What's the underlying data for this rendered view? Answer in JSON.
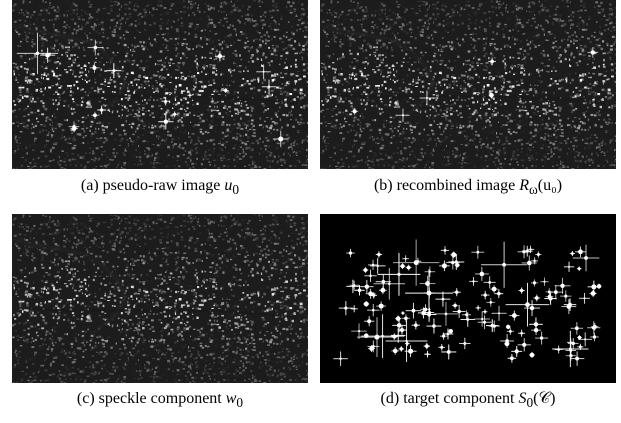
{
  "panels": [
    {
      "id": "a",
      "kind": "speckle-with-targets",
      "caption_prefix": "(a) pseudo-raw image ",
      "caption_math": "u",
      "caption_sub": "0",
      "caption_suffix": ""
    },
    {
      "id": "b",
      "kind": "speckle-with-targets-soft",
      "caption_prefix": "(b) recombined image ",
      "caption_math": "R",
      "caption_sub": "ω",
      "caption_suffix": "(u₀)"
    },
    {
      "id": "c",
      "kind": "speckle-only",
      "caption_prefix": "(c) speckle component ",
      "caption_math": "w",
      "caption_sub": "0",
      "caption_suffix": ""
    },
    {
      "id": "d",
      "kind": "targets-only",
      "caption_prefix": "(d) target component ",
      "caption_math": "S",
      "caption_sub": "0",
      "caption_suffix": "(𝒞)"
    }
  ]
}
